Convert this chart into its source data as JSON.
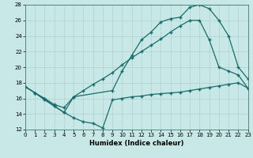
{
  "xlabel": "Humidex (Indice chaleur)",
  "xlim": [
    0,
    23
  ],
  "ylim": [
    12,
    28
  ],
  "xticks": [
    0,
    1,
    2,
    3,
    4,
    5,
    6,
    7,
    8,
    9,
    10,
    11,
    12,
    13,
    14,
    15,
    16,
    17,
    18,
    19,
    20,
    21,
    22,
    23
  ],
  "yticks": [
    12,
    14,
    16,
    18,
    20,
    22,
    24,
    26,
    28
  ],
  "bg_color": "#c8e8e8",
  "line_color": "#1a6b6b",
  "grid_color": "#b0d0d0",
  "curve_top_x": [
    0,
    1,
    2,
    3,
    4,
    5,
    9,
    10,
    11,
    12,
    13,
    14,
    15,
    16,
    17,
    18,
    19,
    20,
    21,
    22,
    23
  ],
  "curve_top_y": [
    17.5,
    16.7,
    15.9,
    15.0,
    14.2,
    16.2,
    17.0,
    19.5,
    21.5,
    23.5,
    24.5,
    25.8,
    26.2,
    26.4,
    27.7,
    28.0,
    27.5,
    26.0,
    24.0,
    20.0,
    18.5
  ],
  "curve_mid_x": [
    0,
    1,
    2,
    3,
    4,
    5,
    6,
    7,
    8,
    9,
    10,
    11,
    12,
    13,
    14,
    15,
    16,
    17,
    18,
    19,
    20,
    21,
    22,
    23
  ],
  "curve_mid_y": [
    17.5,
    16.7,
    16.0,
    15.2,
    14.8,
    16.2,
    17.0,
    17.8,
    18.5,
    19.3,
    20.3,
    21.2,
    22.0,
    22.8,
    23.6,
    24.5,
    25.3,
    26.0,
    26.0,
    23.5,
    20.0,
    19.5,
    19.0,
    17.3
  ],
  "curve_bot_x": [
    0,
    1,
    2,
    3,
    4,
    5,
    6,
    7,
    8,
    9,
    10,
    11,
    12,
    13,
    14,
    15,
    16,
    17,
    18,
    19,
    20,
    21,
    22,
    23
  ],
  "curve_bot_y": [
    17.5,
    16.7,
    15.8,
    15.0,
    14.2,
    13.5,
    13.0,
    12.8,
    12.2,
    15.8,
    16.0,
    16.2,
    16.3,
    16.5,
    16.6,
    16.7,
    16.8,
    17.0,
    17.2,
    17.4,
    17.6,
    17.8,
    18.0,
    17.3
  ]
}
